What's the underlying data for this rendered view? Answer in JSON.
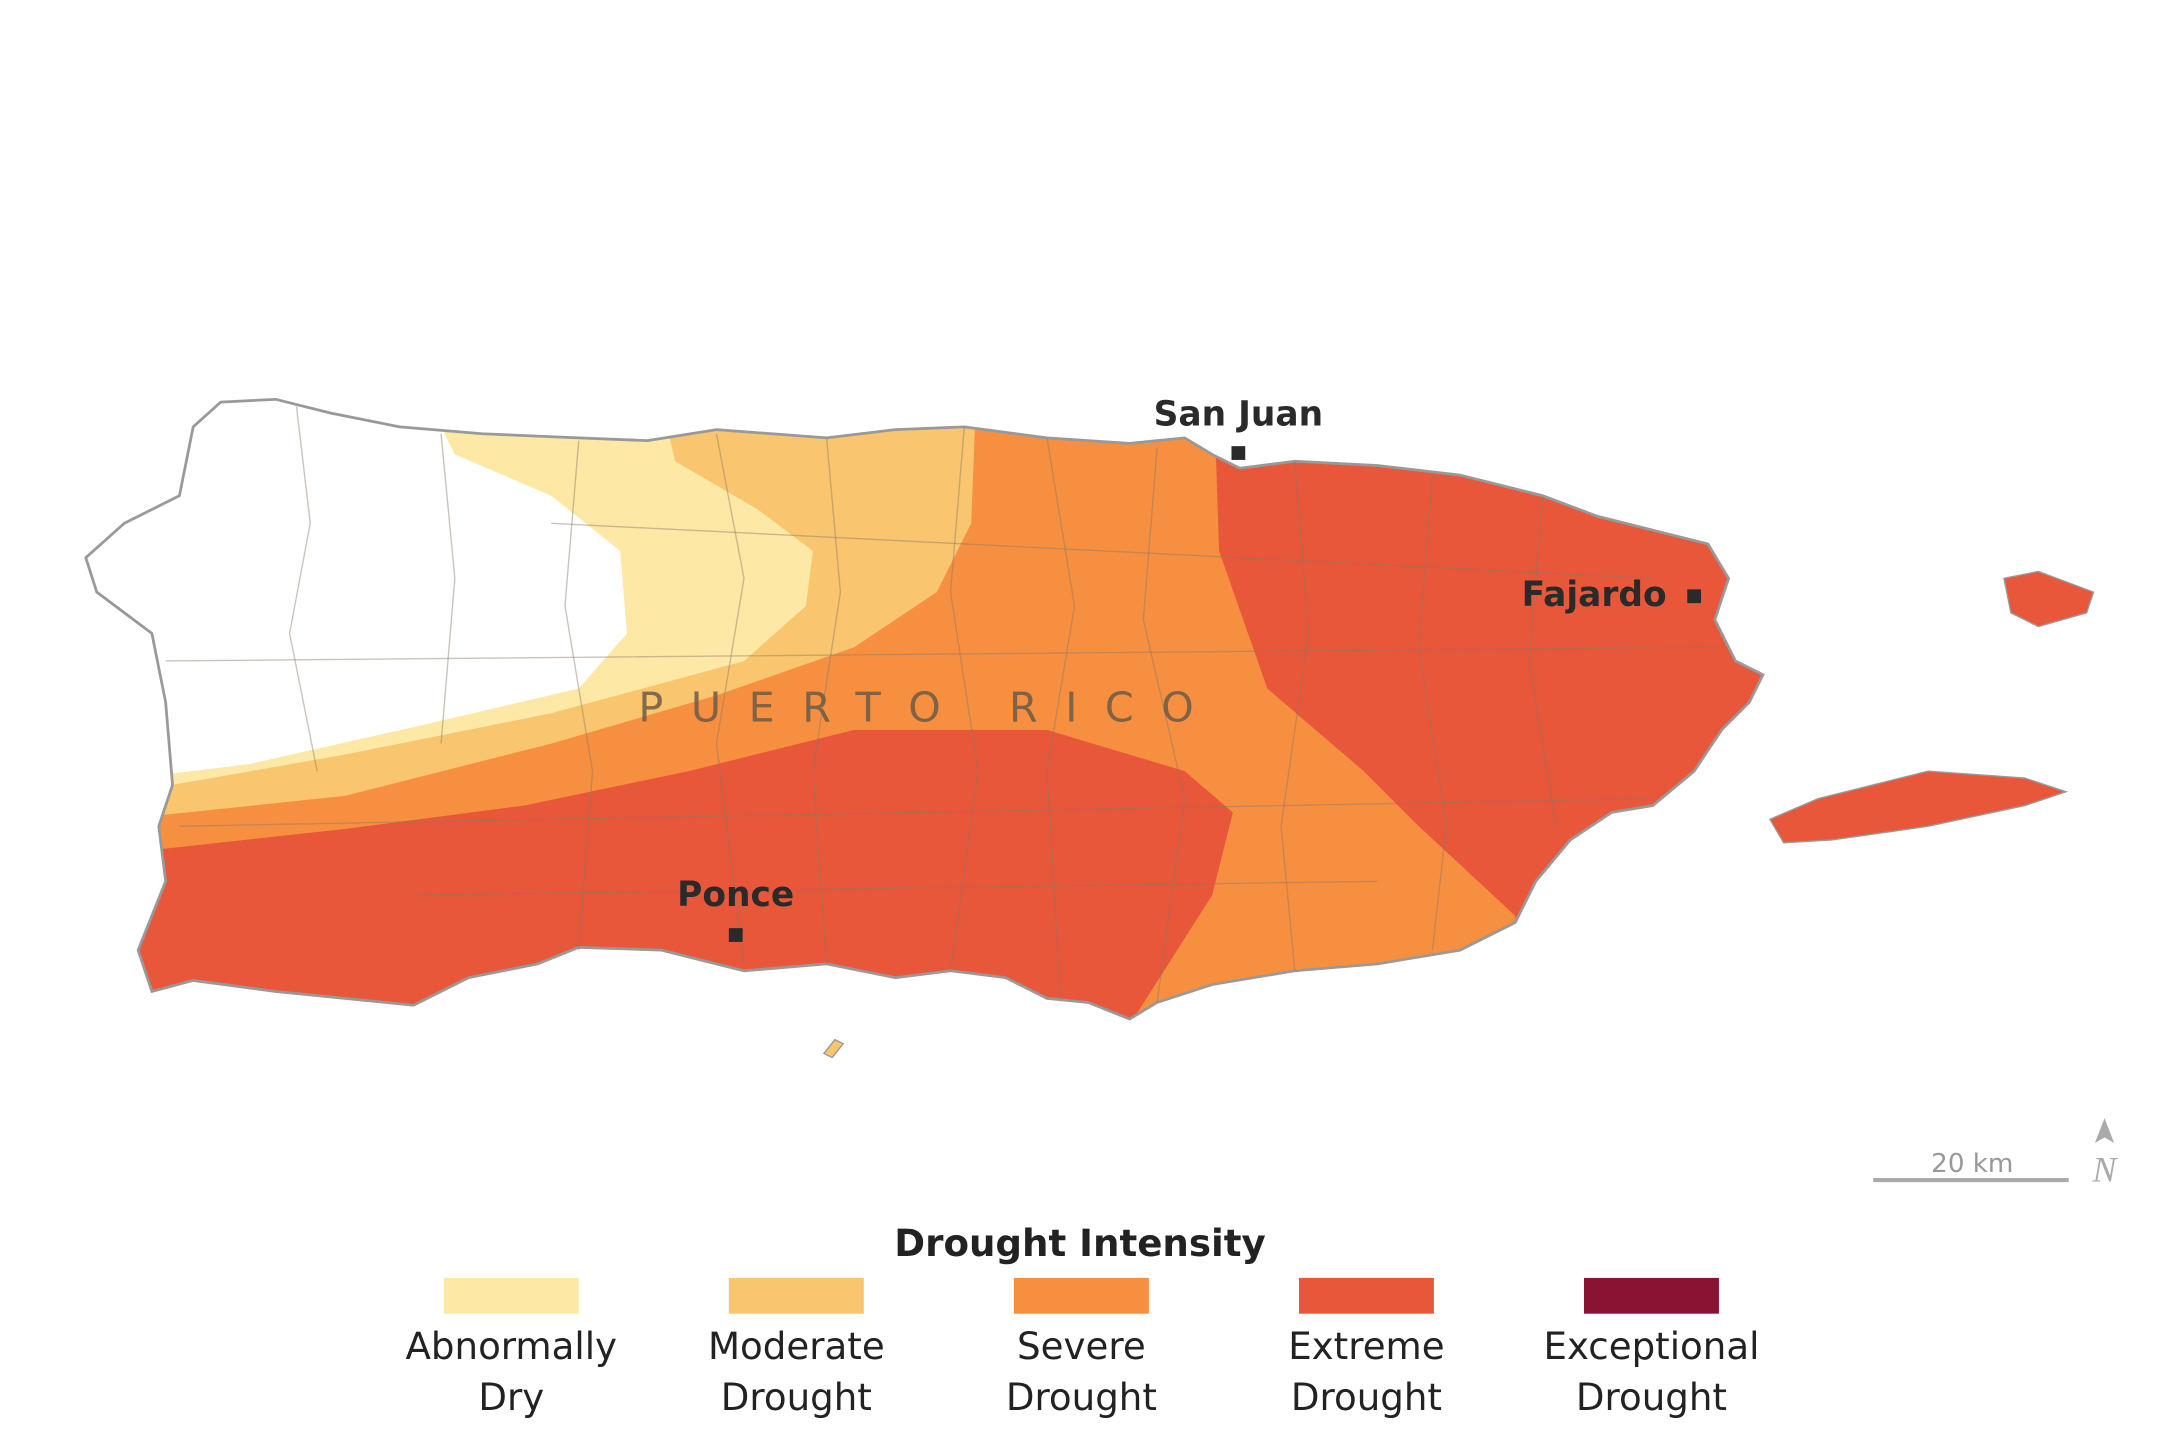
{
  "map": {
    "island_label": "PUERTO RICO",
    "cities": [
      "San Juan",
      "Fajardo",
      "Ponce"
    ],
    "scale_bar": "20 km",
    "north": "N",
    "legend": {
      "title": "Drought Intensity",
      "items": [
        {
          "lines": [
            "Abnormally",
            "Dry"
          ],
          "color": "#fde9a5"
        },
        {
          "lines": [
            "Moderate",
            "Drought"
          ],
          "color": "#fac56f"
        },
        {
          "lines": [
            "Severe",
            "Drought"
          ],
          "color": "#f78f41"
        },
        {
          "lines": [
            "Extreme",
            "Drought"
          ],
          "color": "#e8573a"
        },
        {
          "lines": [
            "Exceptional",
            "Drought"
          ],
          "color": "#8a1233"
        }
      ]
    }
  }
}
